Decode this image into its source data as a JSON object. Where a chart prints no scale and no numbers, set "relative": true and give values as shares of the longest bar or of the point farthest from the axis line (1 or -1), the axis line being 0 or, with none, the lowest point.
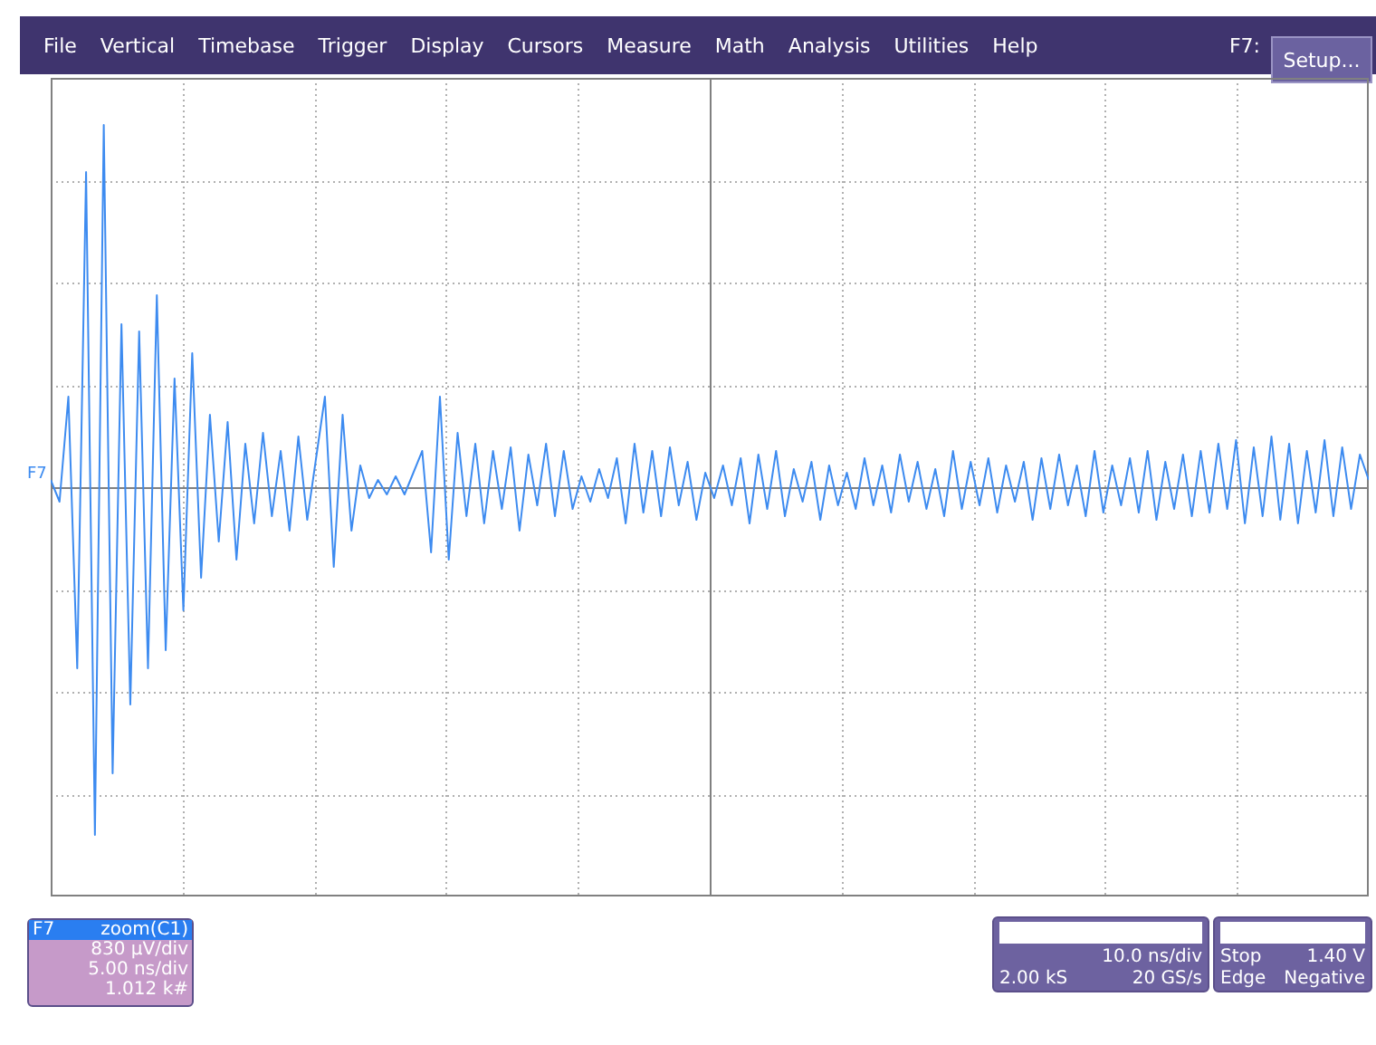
{
  "chart_data": {
    "type": "line",
    "relative": true,
    "grid": true,
    "line_style": "solid",
    "marker": "none",
    "color": "#3d8bf0",
    "categories": [
      null,
      null,
      null,
      null,
      null,
      null,
      null,
      null,
      null,
      null,
      null,
      null,
      null,
      null,
      null,
      null,
      null,
      null,
      null,
      null,
      null,
      null,
      null,
      null,
      null,
      null,
      null,
      null,
      null,
      null,
      null,
      null,
      null,
      null,
      null,
      null,
      null,
      null,
      null,
      null,
      null,
      null,
      null,
      null,
      null,
      null,
      null,
      null,
      null,
      null,
      null,
      null,
      null,
      null,
      null,
      null,
      null,
      null,
      null,
      null,
      null,
      null,
      null,
      null,
      null,
      null,
      null,
      null,
      null,
      null,
      null,
      null,
      null,
      null,
      null,
      null,
      null,
      null,
      null,
      null,
      null,
      null,
      null,
      null,
      null,
      null,
      null,
      null,
      null,
      null,
      null,
      null,
      null,
      null,
      null,
      null,
      null,
      null,
      null,
      null,
      null,
      null,
      null,
      null,
      null,
      null,
      null,
      null,
      null,
      null,
      null,
      null,
      null,
      null,
      null,
      null,
      null,
      null,
      null,
      null,
      null,
      null,
      null,
      null,
      null,
      null,
      null,
      null,
      null,
      null,
      null,
      null,
      null,
      null,
      null,
      null,
      null,
      null,
      null,
      null,
      null,
      null,
      null,
      null,
      null,
      null,
      null,
      null,
      null,
      null
    ],
    "values": [
      0.02,
      -0.04,
      0.25,
      -0.5,
      0.87,
      -0.96,
      1.0,
      -0.79,
      0.45,
      -0.6,
      0.43,
      -0.5,
      0.53,
      -0.45,
      0.3,
      -0.34,
      0.37,
      -0.25,
      0.2,
      -0.15,
      0.18,
      -0.2,
      0.12,
      -0.1,
      0.15,
      -0.08,
      0.1,
      -0.12,
      0.14,
      -0.09,
      0.08,
      0.25,
      -0.22,
      0.2,
      -0.12,
      0.06,
      -0.03,
      0.02,
      -0.02,
      0.03,
      -0.02,
      0.04,
      0.1,
      -0.18,
      0.25,
      -0.2,
      0.15,
      -0.08,
      0.12,
      -0.1,
      0.1,
      -0.06,
      0.11,
      -0.12,
      0.09,
      -0.05,
      0.12,
      -0.08,
      0.1,
      -0.06,
      0.03,
      -0.04,
      0.05,
      -0.03,
      0.08,
      -0.1,
      0.12,
      -0.07,
      0.1,
      -0.08,
      0.11,
      -0.05,
      0.07,
      -0.09,
      0.04,
      -0.03,
      0.06,
      -0.05,
      0.08,
      -0.1,
      0.09,
      -0.06,
      0.1,
      -0.08,
      0.05,
      -0.04,
      0.07,
      -0.09,
      0.06,
      -0.05,
      0.04,
      -0.06,
      0.08,
      -0.05,
      0.06,
      -0.07,
      0.09,
      -0.04,
      0.07,
      -0.06,
      0.05,
      -0.08,
      0.1,
      -0.06,
      0.07,
      -0.05,
      0.08,
      -0.07,
      0.06,
      -0.04,
      0.07,
      -0.09,
      0.08,
      -0.06,
      0.09,
      -0.05,
      0.06,
      -0.08,
      0.1,
      -0.07,
      0.06,
      -0.05,
      0.08,
      -0.07,
      0.1,
      -0.09,
      0.07,
      -0.06,
      0.09,
      -0.08,
      0.1,
      -0.07,
      0.12,
      -0.06,
      0.13,
      -0.1,
      0.11,
      -0.08,
      0.14,
      -0.09,
      0.12,
      -0.1,
      0.1,
      -0.07,
      0.13,
      -0.08,
      0.11,
      -0.06,
      0.09,
      0.02
    ],
    "annotations": [
      "File",
      "Vertical",
      "Timebase",
      "Trigger",
      "Display",
      "Cursors",
      "Measure",
      "Math",
      "Analysis",
      "Utilities",
      "Help",
      "F7:",
      "Setup...",
      "F7",
      "F7",
      "zoom(C1)",
      "830 µV/div",
      "5.00 ns/div",
      "1.012 k#",
      "10.0 ns/div",
      "2.00 kS",
      "20 GS/s",
      "Stop",
      "1.40 V",
      "Edge",
      "Negative"
    ]
  }
}
